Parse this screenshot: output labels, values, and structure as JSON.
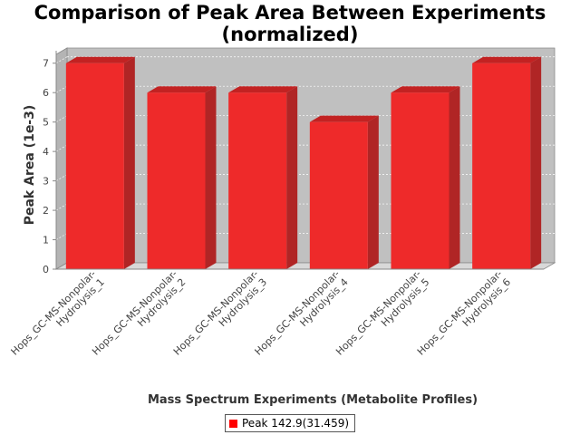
{
  "chart_data": {
    "type": "bar",
    "title_lines": [
      "Comparison of Peak Area Between Experiments",
      "(normalized)"
    ],
    "xlabel": "Mass Spectrum Experiments (Metabolite Profiles)",
    "ylabel": "Peak Area (1e-3)",
    "categories": [
      [
        "Hops_GC-MS-Nonpolar-",
        "Hydrolysis_1"
      ],
      [
        "Hops_GC-MS-Nonpolar-",
        "Hydrolysis_2"
      ],
      [
        "Hops_GC-MS-Nonpolar-",
        "Hydrolysis_3"
      ],
      [
        "Hops_GC-MS-Nonpolar-",
        "Hydrolysis_4"
      ],
      [
        "Hops_GC-MS-Nonpolar-",
        "Hydrolysis_5"
      ],
      [
        "Hops_GC-MS-Nonpolar-",
        "Hydrolysis_6"
      ]
    ],
    "series": [
      {
        "name": "Peak 142.9(31.459)",
        "values": [
          7,
          6,
          6,
          5,
          6,
          7
        ]
      }
    ],
    "ylim": [
      0,
      7.3
    ],
    "yticks": [
      0,
      1,
      2,
      3,
      4,
      5,
      6,
      7
    ],
    "grid": true,
    "legend_position": "bottom-center",
    "colors": {
      "bar_front": "#ee2a2a",
      "bar_top": "#c22222",
      "bar_side": "#b02525",
      "plot_back": "#c0c0c0",
      "plot_floor": "#d8d8d8"
    }
  }
}
